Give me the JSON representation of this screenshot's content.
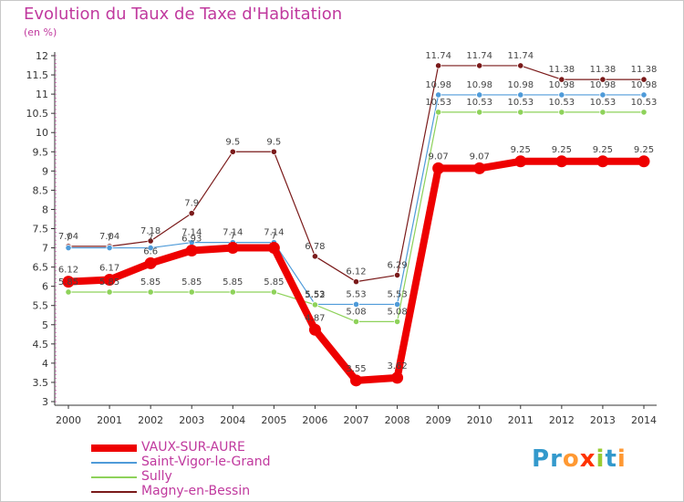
{
  "header": {
    "title": "Evolution du Taux de Taxe d'Habitation",
    "unit": "(en %)"
  },
  "logo": {
    "text": "Proxiti",
    "colors": [
      "#3399cc",
      "#3399cc",
      "#ff9933",
      "#ff3300",
      "#99cc33",
      "#3399cc",
      "#ff9933"
    ]
  },
  "chart_data": {
    "type": "line",
    "title": "Evolution du Taux de Taxe d'Habitation",
    "ylabel": "(en %)",
    "xlabel": "",
    "ylim": [
      3,
      12
    ],
    "yticks": [
      "3",
      "3.5",
      "4",
      "4.5",
      "5",
      "5.5",
      "6",
      "6.5",
      "7",
      "7.5",
      "8",
      "8.5",
      "9",
      "9.5",
      "10",
      "10.5",
      "11",
      "11.5",
      "12"
    ],
    "categories": [
      "2000",
      "2001",
      "2002",
      "2003",
      "2004",
      "2005",
      "2006",
      "2007",
      "2008",
      "2009",
      "2010",
      "2011",
      "2012",
      "2013",
      "2014"
    ],
    "grid": false,
    "legend_position": "bottom-left",
    "series": [
      {
        "name": "VAUX-SUR-AURE",
        "color": "#ee0000",
        "values": [
          6.12,
          6.17,
          6.6,
          6.93,
          7.0,
          7.0,
          4.87,
          3.55,
          3.62,
          9.07,
          9.07,
          9.25,
          9.25,
          9.25,
          9.25
        ]
      },
      {
        "name": "Saint-Vigor-le-Grand",
        "color": "#4f9bd9",
        "values": [
          7.0,
          7.0,
          7.0,
          7.14,
          7.14,
          7.14,
          5.53,
          5.53,
          5.53,
          10.98,
          10.98,
          10.98,
          10.98,
          10.98,
          10.98
        ]
      },
      {
        "name": "Sully",
        "color": "#8ed25a",
        "values": [
          5.85,
          5.85,
          5.85,
          5.85,
          5.85,
          5.85,
          5.52,
          5.08,
          5.08,
          10.53,
          10.53,
          10.53,
          10.53,
          10.53,
          10.53
        ]
      },
      {
        "name": "Magny-en-Bessin",
        "color": "#7a1a1a",
        "values": [
          7.04,
          7.04,
          7.18,
          7.9,
          9.5,
          9.5,
          6.78,
          6.12,
          6.29,
          11.74,
          11.74,
          11.74,
          11.38,
          11.38,
          11.38
        ]
      }
    ],
    "data_labels": [
      [
        "6.12",
        "6.17",
        "6.6",
        "6.93",
        "7",
        "7",
        "4.87",
        "3.55",
        "3.62",
        "9.07",
        "9.07",
        "9.25",
        "9.25",
        "9.25",
        "9.25"
      ],
      [
        "7",
        "7",
        "7",
        "7.14",
        "7.14",
        "7.14",
        "5.53",
        "5.53",
        "5.53",
        "10.98",
        "10.98",
        "10.98",
        "10.98",
        "10.98",
        "10.98"
      ],
      [
        "5.85",
        "5.85",
        "5.85",
        "5.85",
        "5.85",
        "5.85",
        "5.52",
        "5.08",
        "5.08",
        "10.53",
        "10.53",
        "10.53",
        "10.53",
        "10.53",
        "10.53"
      ],
      [
        "7.04",
        "7.04",
        "7.18",
        "7.9",
        "9.5",
        "9.5",
        "6.78",
        "6.12",
        "6.29",
        "11.74",
        "11.74",
        "11.74",
        "11.38",
        "11.38",
        "11.38"
      ]
    ]
  }
}
